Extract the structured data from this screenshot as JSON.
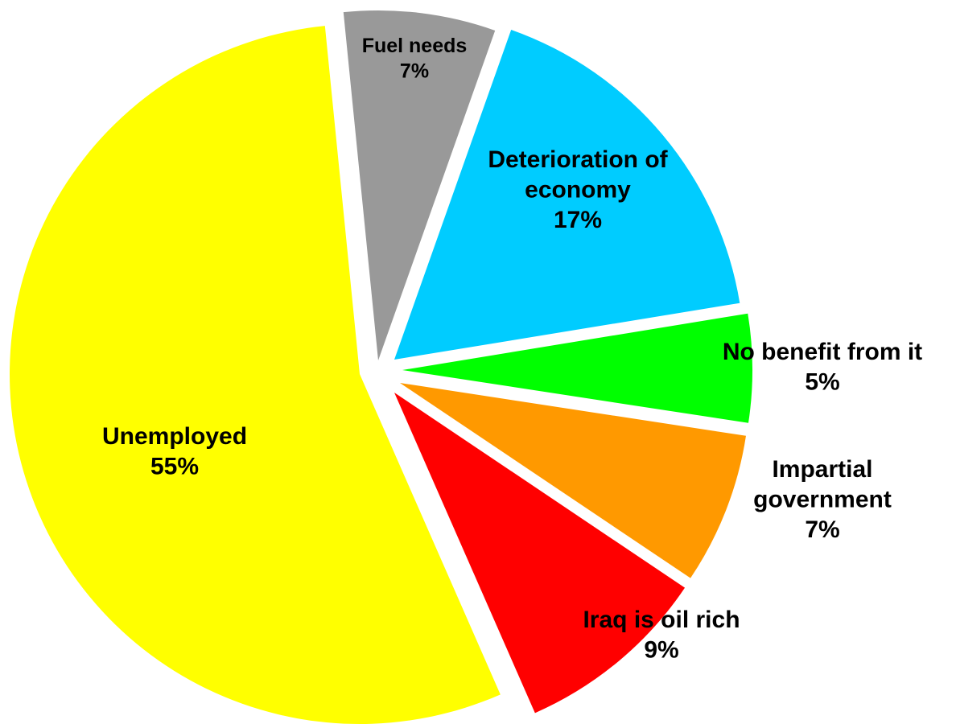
{
  "chart_data": {
    "type": "pie",
    "title": "",
    "start_angle_deg": 0,
    "direction": "clockwise",
    "exploded": true,
    "slices": [
      {
        "label_lines": [
          "Deterioration of",
          "economy"
        ],
        "value_text": "17%",
        "value": 17,
        "color": "#00CCFF"
      },
      {
        "label_lines": [
          "No benefit from it"
        ],
        "value_text": "5%",
        "value": 5,
        "color": "#00FF00"
      },
      {
        "label_lines": [
          "Impartial",
          "government"
        ],
        "value_text": "7%",
        "value": 7,
        "color": "#FF9900"
      },
      {
        "label_lines": [
          "Iraq is oil rich"
        ],
        "value_text": "9%",
        "value": 9,
        "color": "#FF0000"
      },
      {
        "label_lines": [
          "Unemployed"
        ],
        "value_text": "55%",
        "value": 55,
        "color": "#FFFF00"
      },
      {
        "label_lines": [
          "Fuel needs"
        ],
        "value_text": "7%",
        "value": 7,
        "color": "#999999"
      }
    ]
  }
}
